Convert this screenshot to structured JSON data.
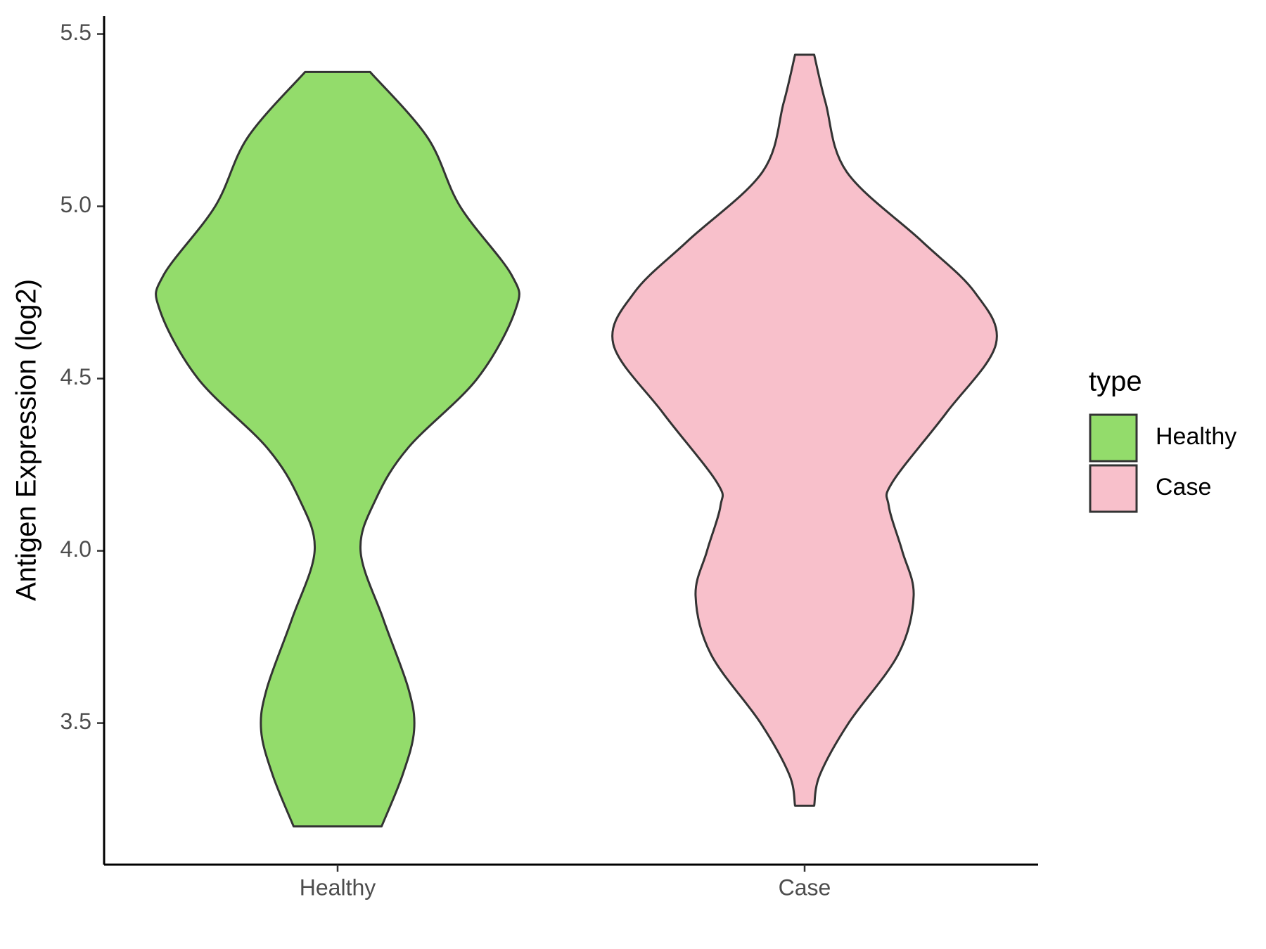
{
  "chart_data": {
    "type": "violin",
    "y_label": "Antigen Expression (log2)",
    "categories": [
      "Healthy",
      "Case"
    ],
    "legend_title": "type",
    "legend_position": "right",
    "ylim": [
      3.089,
      5.552
    ],
    "yticks": [
      3.5,
      {
        "value": 4.0,
        "label": "4.0"
      },
      4.5,
      {
        "value": 5.0,
        "label": "5.0"
      },
      5.5
    ],
    "series": [
      {
        "name": "Healthy",
        "color": "#93dc6b",
        "y": [
          5.39,
          5.2,
          5.0,
          4.8,
          4.7,
          4.5,
          4.3,
          4.15,
          4.0,
          3.8,
          3.6,
          3.48,
          3.35,
          3.2
        ],
        "density": [
          0.17,
          0.47,
          0.64,
          0.91,
          0.93,
          0.73,
          0.37,
          0.2,
          0.12,
          0.24,
          0.37,
          0.4,
          0.34,
          0.23
        ]
      },
      {
        "name": "Case",
        "color": "#f8c0cb",
        "y": [
          5.44,
          5.3,
          5.1,
          4.9,
          4.75,
          4.6,
          4.4,
          4.2,
          4.13,
          4.0,
          3.87,
          3.7,
          3.5,
          3.35,
          3.26
        ],
        "density": [
          0.05,
          0.11,
          0.22,
          0.61,
          0.89,
          1.0,
          0.74,
          0.46,
          0.44,
          0.51,
          0.57,
          0.49,
          0.23,
          0.08,
          0.05
        ]
      }
    ]
  }
}
